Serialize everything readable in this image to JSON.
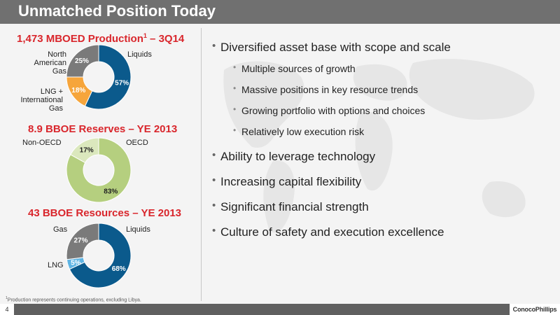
{
  "header": {
    "title": "Unmatched Position Today"
  },
  "chart_data": [
    {
      "type": "pie",
      "title": "1,473 MBOED Production",
      "title_sup": "1",
      "title_suffix": " – 3Q14",
      "slices": [
        {
          "label": "Liquids",
          "value": 57,
          "value_label": "57%",
          "color": "#0b5a8c"
        },
        {
          "label": "LNG + International Gas",
          "value": 18,
          "value_label": "18%",
          "color": "#f6a53b"
        },
        {
          "label": "North American Gas",
          "value": 25,
          "value_label": "25%",
          "color": "#7a7a7a"
        }
      ]
    },
    {
      "type": "pie",
      "title": "8.9 BBOE Reserves – YE 2013",
      "slices": [
        {
          "label": "OECD",
          "value": 83,
          "value_label": "83%",
          "color": "#b5cf7f"
        },
        {
          "label": "Non-OECD",
          "value": 17,
          "value_label": "17%",
          "color": "#dbe8bd"
        }
      ]
    },
    {
      "type": "pie",
      "title": "43 BBOE Resources – YE 2013",
      "slices": [
        {
          "label": "Liquids",
          "value": 68,
          "value_label": "68%",
          "color": "#0b5a8c"
        },
        {
          "label": "LNG",
          "value": 5,
          "value_label": "5%",
          "color": "#5fb4e3"
        },
        {
          "label": "Gas",
          "value": 27,
          "value_label": "27%",
          "color": "#7a7a7a"
        }
      ]
    }
  ],
  "chart_labels": {
    "c1": {
      "liquids": "Liquids",
      "lng_intl_1": "LNG +",
      "lng_intl_2": "International",
      "lng_intl_3": "Gas",
      "nag_1": "North",
      "nag_2": "American",
      "nag_3": "Gas"
    },
    "c2": {
      "oecd": "OECD",
      "non_oecd": "Non-OECD"
    },
    "c3": {
      "liquids": "Liquids",
      "lng": "LNG",
      "gas": "Gas"
    }
  },
  "bullets": [
    {
      "level": 1,
      "text": "Diversified asset base with scope and scale"
    },
    {
      "level": 2,
      "text": "Multiple sources of growth"
    },
    {
      "level": 2,
      "text": "Massive positions in key resource trends"
    },
    {
      "level": 2,
      "text": "Growing portfolio with options and choices"
    },
    {
      "level": 2,
      "text": "Relatively low execution risk"
    },
    {
      "level": 1,
      "text": "Ability to leverage technology"
    },
    {
      "level": 1,
      "text": "Increasing capital flexibility"
    },
    {
      "level": 1,
      "text": "Significant financial strength"
    },
    {
      "level": 1,
      "text": "Culture of safety and execution excellence"
    }
  ],
  "footnote": {
    "sup": "1",
    "text": "Production represents continuing operations, excluding Libya."
  },
  "footer": {
    "page_number": "4",
    "logo_text": "ConocoPhillips"
  }
}
